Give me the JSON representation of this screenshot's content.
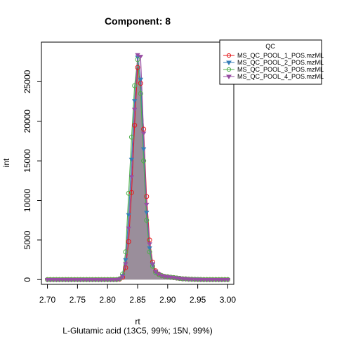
{
  "chart_data": {
    "type": "line",
    "title": "Component: 8",
    "xlabel": "rt",
    "ylabel": "int",
    "subtitle": "L-Glutamic acid (13C5, 99%; 15N, 99%)",
    "xlim": [
      2.69,
      3.01
    ],
    "ylim": [
      -600,
      30000
    ],
    "xticks": [
      "2.70",
      "2.75",
      "2.80",
      "2.85",
      "2.90",
      "2.95",
      "3.00"
    ],
    "yticks": [
      "0",
      "5000",
      "10000",
      "15000",
      "20000",
      "25000"
    ],
    "grid": false,
    "legend": {
      "title": "QC",
      "placement": "top-right"
    },
    "series": [
      {
        "name": "MS_QC_POOL_1_POS.mzML",
        "color": "#e41a1c",
        "marker": "circle",
        "x": [
          2.7,
          2.705,
          2.71,
          2.715,
          2.72,
          2.725,
          2.73,
          2.735,
          2.74,
          2.745,
          2.75,
          2.755,
          2.76,
          2.765,
          2.77,
          2.775,
          2.78,
          2.785,
          2.79,
          2.795,
          2.8,
          2.805,
          2.81,
          2.815,
          2.82,
          2.825,
          2.83,
          2.835,
          2.84,
          2.845,
          2.85,
          2.855,
          2.86,
          2.865,
          2.87,
          2.875,
          2.88,
          2.885,
          2.89,
          2.895,
          2.9,
          2.905,
          2.91,
          2.915,
          2.92,
          2.925,
          2.93,
          2.935,
          2.94,
          2.945,
          2.95,
          2.955,
          2.96,
          2.965,
          2.97,
          2.975,
          2.98,
          2.985,
          2.99,
          2.995,
          3.0
        ],
        "y": [
          0,
          0,
          0,
          0,
          0,
          0,
          0,
          0,
          0,
          0,
          0,
          0,
          0,
          0,
          0,
          0,
          0,
          0,
          0,
          0,
          0,
          0,
          0,
          0,
          50,
          300,
          1500,
          4800,
          11000,
          19500,
          26800,
          24800,
          19000,
          10500,
          5000,
          2200,
          1100,
          700,
          500,
          400,
          350,
          300,
          250,
          200,
          150,
          100,
          80,
          60,
          40,
          30,
          20,
          10,
          0,
          0,
          0,
          0,
          0,
          0,
          0,
          0,
          0
        ]
      },
      {
        "name": "MS_QC_POOL_2_POS.mzML",
        "color": "#377eb8",
        "marker": "triangle-down",
        "x": [
          2.7,
          2.705,
          2.71,
          2.715,
          2.72,
          2.725,
          2.73,
          2.735,
          2.74,
          2.745,
          2.75,
          2.755,
          2.76,
          2.765,
          2.77,
          2.775,
          2.78,
          2.785,
          2.79,
          2.795,
          2.8,
          2.805,
          2.81,
          2.815,
          2.82,
          2.825,
          2.83,
          2.835,
          2.84,
          2.845,
          2.85,
          2.855,
          2.86,
          2.865,
          2.87,
          2.875,
          2.88,
          2.885,
          2.89,
          2.895,
          2.9,
          2.905,
          2.91,
          2.915,
          2.92,
          2.925,
          2.93,
          2.935,
          2.94,
          2.945,
          2.95,
          2.955,
          2.96,
          2.965,
          2.97,
          2.975,
          2.98,
          2.985,
          2.99,
          2.995,
          3.0
        ],
        "y": [
          0,
          0,
          0,
          0,
          0,
          0,
          0,
          0,
          0,
          0,
          0,
          0,
          0,
          0,
          0,
          0,
          0,
          0,
          0,
          0,
          0,
          0,
          0,
          0,
          80,
          500,
          2500,
          8200,
          15200,
          22600,
          28100,
          25300,
          16500,
          8500,
          4000,
          1900,
          1000,
          700,
          500,
          400,
          350,
          300,
          250,
          200,
          150,
          100,
          80,
          60,
          40,
          30,
          20,
          10,
          0,
          0,
          0,
          0,
          0,
          0,
          0,
          0,
          0
        ]
      },
      {
        "name": "MS_QC_POOL_3_POS.mzML",
        "color": "#4daf4a",
        "marker": "circle",
        "x": [
          2.7,
          2.705,
          2.71,
          2.715,
          2.72,
          2.725,
          2.73,
          2.735,
          2.74,
          2.745,
          2.75,
          2.755,
          2.76,
          2.765,
          2.77,
          2.775,
          2.78,
          2.785,
          2.79,
          2.795,
          2.8,
          2.805,
          2.81,
          2.815,
          2.82,
          2.825,
          2.83,
          2.835,
          2.84,
          2.845,
          2.85,
          2.855,
          2.86,
          2.865,
          2.87,
          2.875,
          2.88,
          2.885,
          2.89,
          2.895,
          2.9,
          2.905,
          2.91,
          2.915,
          2.92,
          2.925,
          2.93,
          2.935,
          2.94,
          2.945,
          2.95,
          2.955,
          2.96,
          2.965,
          2.97,
          2.975,
          2.98,
          2.985,
          2.99,
          2.995,
          3.0
        ],
        "y": [
          0,
          0,
          0,
          0,
          0,
          0,
          0,
          0,
          0,
          0,
          0,
          0,
          0,
          0,
          0,
          0,
          0,
          0,
          0,
          0,
          0,
          0,
          0,
          0,
          100,
          700,
          3500,
          10900,
          18000,
          24500,
          27800,
          23500,
          15000,
          7500,
          3500,
          1700,
          900,
          650,
          500,
          400,
          350,
          300,
          250,
          200,
          150,
          100,
          80,
          60,
          40,
          30,
          20,
          10,
          0,
          0,
          0,
          0,
          0,
          0,
          0,
          0,
          0
        ]
      },
      {
        "name": "MS_QC_POOL_4_POS.mzML",
        "color": "#984ea3",
        "marker": "triangle-down",
        "x": [
          2.7,
          2.705,
          2.71,
          2.715,
          2.72,
          2.725,
          2.73,
          2.735,
          2.74,
          2.745,
          2.75,
          2.755,
          2.76,
          2.765,
          2.77,
          2.775,
          2.78,
          2.785,
          2.79,
          2.795,
          2.8,
          2.805,
          2.81,
          2.815,
          2.82,
          2.825,
          2.83,
          2.835,
          2.84,
          2.845,
          2.85,
          2.855,
          2.86,
          2.865,
          2.87,
          2.875,
          2.88,
          2.885,
          2.89,
          2.895,
          2.9,
          2.905,
          2.91,
          2.915,
          2.92,
          2.925,
          2.93,
          2.935,
          2.94,
          2.945,
          2.95,
          2.955,
          2.96,
          2.965,
          2.97,
          2.975,
          2.98,
          2.985,
          2.99,
          2.995,
          3.0
        ],
        "y": [
          0,
          0,
          0,
          0,
          0,
          0,
          0,
          0,
          0,
          0,
          0,
          0,
          0,
          0,
          0,
          0,
          0,
          0,
          0,
          0,
          0,
          0,
          0,
          0,
          60,
          400,
          2000,
          6500,
          13000,
          21500,
          28400,
          28200,
          18500,
          9500,
          4500,
          2000,
          1050,
          700,
          500,
          400,
          350,
          300,
          250,
          200,
          150,
          100,
          80,
          60,
          40,
          30,
          20,
          10,
          0,
          0,
          0,
          0,
          0,
          0,
          0,
          0,
          0
        ]
      }
    ]
  }
}
